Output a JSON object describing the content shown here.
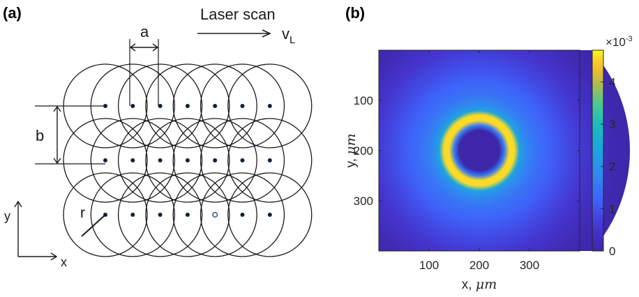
{
  "panel_a": {
    "label": "(a)",
    "scan_label": "Laser scan",
    "velocity_symbol": "v",
    "velocity_subscript": "L",
    "dim_a": "a",
    "dim_b": "b",
    "dim_r": "r",
    "axis_x": "x",
    "axis_y": "y",
    "grid": {
      "rows": 3,
      "cols": 7,
      "open_marker": {
        "row": 2,
        "col": 4
      }
    }
  },
  "panel_b": {
    "label": "(b)",
    "colors": {
      "low": "#3e26a8",
      "mid": "#13bdb5",
      "high": "#f9fb15"
    }
  },
  "chart_data": {
    "type": "heatmap",
    "xlabel_var": "x, ",
    "xlabel_unit": "μm",
    "ylabel_var": "y, ",
    "ylabel_unit": "μm",
    "x_ticks": [
      100,
      200,
      300
    ],
    "y_ticks": [
      100,
      200,
      300
    ],
    "xlim": [
      0,
      400
    ],
    "ylim": [
      0,
      400
    ],
    "y_reversed": true,
    "center": [
      200,
      200
    ],
    "colorbar": {
      "ticks": [
        0,
        1,
        2,
        3,
        4
      ],
      "multiplier_base": "×10",
      "multiplier_exp": "-3",
      "range": [
        0,
        4.75
      ],
      "colormap": "parula"
    },
    "radial_profile": {
      "radius_um": [
        0,
        40,
        50,
        60,
        70,
        80,
        90,
        110,
        140,
        170,
        210,
        260,
        300
      ],
      "value": [
        0,
        0,
        1.6,
        4.6,
        4.6,
        2.4,
        1.9,
        1.5,
        1.2,
        0.9,
        0.5,
        0.15,
        0.02
      ]
    }
  }
}
